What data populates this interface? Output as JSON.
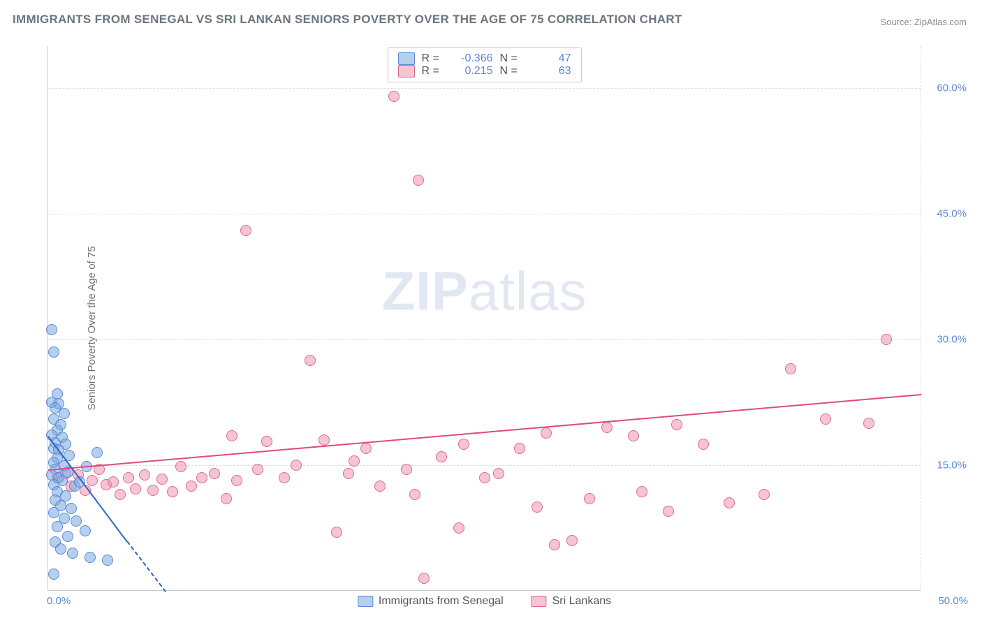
{
  "title": "IMMIGRANTS FROM SENEGAL VS SRI LANKAN SENIORS POVERTY OVER THE AGE OF 75 CORRELATION CHART",
  "source_label": "Source:",
  "source_name": "ZipAtlas.com",
  "ylabel": "Seniors Poverty Over the Age of 75",
  "watermark_a": "ZIP",
  "watermark_b": "atlas",
  "chart": {
    "type": "scatter",
    "xlim": [
      0,
      50
    ],
    "ylim": [
      0,
      65
    ],
    "yticks": [
      15,
      30,
      45,
      60
    ],
    "ytick_labels": [
      "15.0%",
      "30.0%",
      "45.0%",
      "60.0%"
    ],
    "xtick_left": "0.0%",
    "xtick_right": "50.0%",
    "grid_color": "#dddddd",
    "background": "#ffffff"
  },
  "series": [
    {
      "name": "Immigrants from Senegal",
      "fill": "rgba(120,170,225,0.55)",
      "stroke": "#5b88d6",
      "line_color": "#2a66c8",
      "R": "-0.366",
      "N": "47",
      "trend": {
        "x1": 0,
        "y1": 18.5,
        "x2": 4.5,
        "y2": 6
      },
      "trend_dash": {
        "x1": 4.5,
        "y1": 6,
        "x2": 6.7,
        "y2": 0
      },
      "points": [
        [
          0.2,
          31.2
        ],
        [
          0.3,
          28.5
        ],
        [
          0.5,
          23.5
        ],
        [
          0.2,
          22.5
        ],
        [
          0.6,
          22.3
        ],
        [
          0.4,
          21.8
        ],
        [
          0.9,
          21.2
        ],
        [
          0.3,
          20.5
        ],
        [
          0.7,
          19.8
        ],
        [
          0.5,
          19.2
        ],
        [
          0.2,
          18.6
        ],
        [
          0.8,
          18.3
        ],
        [
          0.4,
          17.7
        ],
        [
          0.3,
          17.0
        ],
        [
          1.0,
          17.5
        ],
        [
          0.6,
          16.8
        ],
        [
          1.2,
          16.2
        ],
        [
          0.5,
          15.8
        ],
        [
          0.3,
          15.3
        ],
        [
          0.9,
          14.9
        ],
        [
          0.4,
          14.5
        ],
        [
          1.1,
          14.2
        ],
        [
          0.2,
          13.8
        ],
        [
          0.6,
          13.5
        ],
        [
          0.8,
          13.2
        ],
        [
          0.3,
          12.7
        ],
        [
          1.5,
          12.5
        ],
        [
          2.8,
          16.5
        ],
        [
          2.2,
          14.8
        ],
        [
          1.8,
          13.0
        ],
        [
          0.5,
          11.8
        ],
        [
          1.0,
          11.3
        ],
        [
          0.4,
          10.8
        ],
        [
          0.7,
          10.2
        ],
        [
          1.3,
          9.8
        ],
        [
          0.3,
          9.3
        ],
        [
          0.9,
          8.7
        ],
        [
          1.6,
          8.3
        ],
        [
          0.5,
          7.7
        ],
        [
          2.1,
          7.2
        ],
        [
          1.1,
          6.5
        ],
        [
          0.4,
          5.8
        ],
        [
          0.7,
          5.0
        ],
        [
          1.4,
          4.5
        ],
        [
          2.4,
          4.0
        ],
        [
          0.3,
          2.0
        ],
        [
          3.4,
          3.7
        ]
      ]
    },
    {
      "name": "Sri Lankans",
      "fill": "rgba(235,140,165,0.5)",
      "stroke": "#e06a90",
      "line_color": "#e04a7a",
      "R": "0.215",
      "N": "63",
      "trend": {
        "x1": 0,
        "y1": 14.5,
        "x2": 50,
        "y2": 23.5
      },
      "points": [
        [
          0.5,
          13.5
        ],
        [
          1.0,
          14.0
        ],
        [
          1.3,
          12.5
        ],
        [
          1.7,
          13.8
        ],
        [
          2.1,
          12.0
        ],
        [
          2.5,
          13.2
        ],
        [
          2.9,
          14.5
        ],
        [
          3.3,
          12.7
        ],
        [
          3.7,
          13.0
        ],
        [
          4.1,
          11.5
        ],
        [
          4.6,
          13.5
        ],
        [
          5.0,
          12.2
        ],
        [
          5.5,
          13.8
        ],
        [
          6.0,
          12.0
        ],
        [
          6.5,
          13.3
        ],
        [
          7.1,
          11.8
        ],
        [
          7.6,
          14.8
        ],
        [
          8.2,
          12.5
        ],
        [
          8.8,
          13.5
        ],
        [
          9.5,
          14.0
        ],
        [
          10.2,
          11.0
        ],
        [
          10.5,
          18.5
        ],
        [
          10.8,
          13.2
        ],
        [
          11.3,
          43.0
        ],
        [
          12.0,
          14.5
        ],
        [
          12.5,
          17.8
        ],
        [
          13.5,
          13.5
        ],
        [
          14.2,
          15.0
        ],
        [
          15.0,
          27.5
        ],
        [
          15.8,
          18.0
        ],
        [
          16.5,
          7.0
        ],
        [
          17.2,
          14.0
        ],
        [
          17.5,
          15.5
        ],
        [
          18.2,
          17.0
        ],
        [
          19.0,
          12.5
        ],
        [
          19.8,
          59.0
        ],
        [
          20.5,
          14.5
        ],
        [
          21.0,
          11.5
        ],
        [
          21.2,
          49.0
        ],
        [
          21.5,
          1.5
        ],
        [
          22.5,
          16.0
        ],
        [
          23.5,
          7.5
        ],
        [
          23.8,
          17.5
        ],
        [
          25.0,
          13.5
        ],
        [
          25.8,
          14.0
        ],
        [
          27.0,
          17.0
        ],
        [
          28.0,
          10.0
        ],
        [
          28.5,
          18.8
        ],
        [
          29.0,
          5.5
        ],
        [
          30.0,
          6.0
        ],
        [
          31.0,
          11.0
        ],
        [
          32.0,
          19.5
        ],
        [
          33.5,
          18.5
        ],
        [
          34.0,
          11.8
        ],
        [
          35.5,
          9.5
        ],
        [
          36.0,
          19.8
        ],
        [
          37.5,
          17.5
        ],
        [
          39.0,
          10.5
        ],
        [
          41.0,
          11.5
        ],
        [
          42.5,
          26.5
        ],
        [
          44.5,
          20.5
        ],
        [
          47.0,
          20.0
        ],
        [
          48.0,
          30.0
        ]
      ]
    }
  ],
  "legend_bottom": [
    {
      "label": "Immigrants from Senegal",
      "fill": "rgba(120,170,225,0.55)",
      "stroke": "#5b88d6"
    },
    {
      "label": "Sri Lankans",
      "fill": "rgba(235,140,165,0.5)",
      "stroke": "#e06a90"
    }
  ]
}
